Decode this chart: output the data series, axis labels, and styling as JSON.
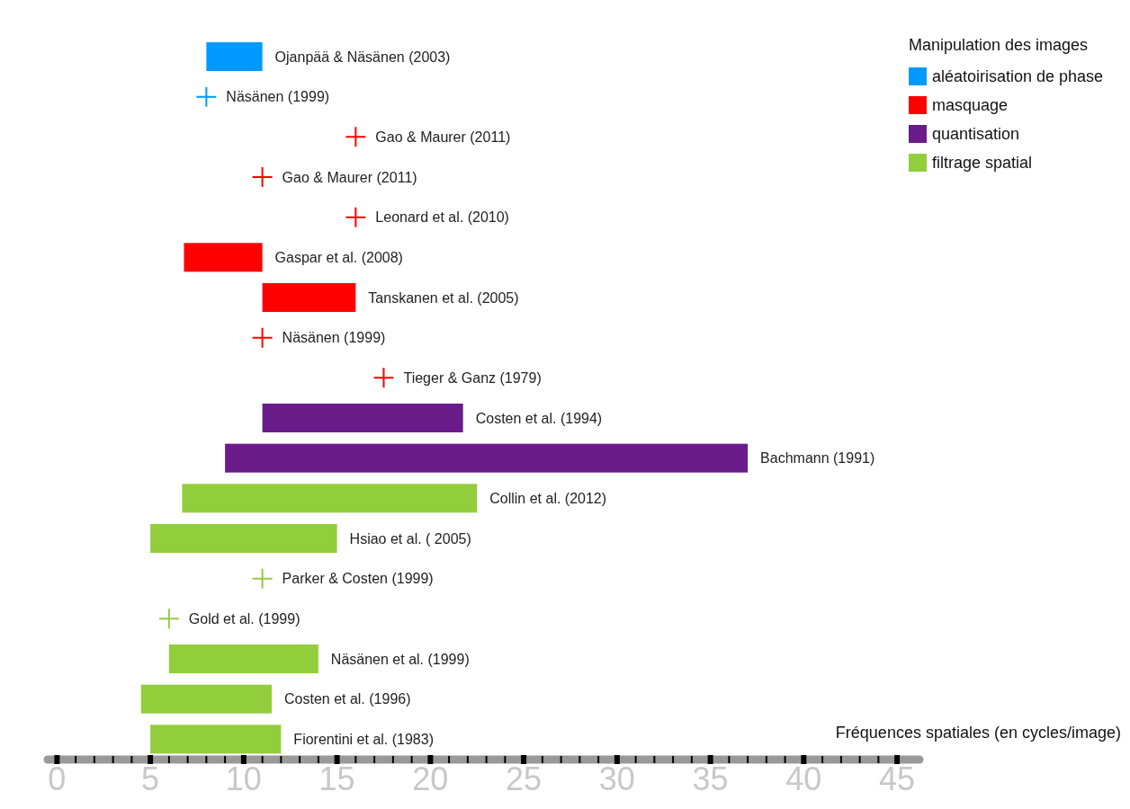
{
  "chart_data": {
    "type": "bar",
    "orientation": "horizontal",
    "categories": [
      "Ojanpää & Näsänen (2003)",
      "Näsänen (1999)",
      "Gao & Maurer (2011)",
      "Gao & Maurer (2011)",
      "Leonard et al. (2010)",
      "Gaspar et al. (2008)",
      "Tanskanen et al. (2005)",
      "Näsänen (1999)",
      "Tieger & Ganz (1979)",
      "Costen et al. (1994)",
      "Bachmann (1991)",
      "Collin et al. (2012)",
      "Hsiao et al. ( 2005)",
      "Parker & Costen (1999)",
      "Gold et al. (1999)",
      "Näsänen et al. (1999)",
      "Costen et al. (1996)",
      "Fiorentini et al. (1983)"
    ],
    "series": [
      {
        "name": "aléatoirisation de phase",
        "color": "#0099ff",
        "values": [
          3,
          null,
          null,
          null,
          null,
          null,
          null,
          null,
          null,
          null,
          null,
          null,
          null,
          null,
          null,
          null,
          null,
          null
        ],
        "base": [
          8,
          null,
          null,
          null,
          null,
          null,
          null,
          null,
          null,
          null,
          null,
          null,
          null,
          null,
          null,
          null,
          null,
          null
        ]
      },
      {
        "type": "scatter",
        "marker": "cross",
        "color": "#0099ff",
        "values": [
          null,
          8,
          null,
          null,
          null,
          null,
          null,
          null,
          null,
          null,
          null,
          null,
          null,
          null,
          null,
          null,
          null,
          null
        ]
      },
      {
        "name": "masquage",
        "color": "#ff0000",
        "values": [
          null,
          null,
          null,
          null,
          null,
          4.2,
          5,
          null,
          null,
          null,
          null,
          null,
          null,
          null,
          null,
          null,
          null,
          null
        ],
        "base": [
          null,
          null,
          null,
          null,
          null,
          6.8,
          11,
          null,
          null,
          null,
          null,
          null,
          null,
          null,
          null,
          null,
          null,
          null
        ]
      },
      {
        "type": "scatter",
        "marker": "cross",
        "color": "#ff0000",
        "values": [
          null,
          null,
          16,
          11,
          16,
          null,
          null,
          11,
          17.5,
          null,
          null,
          null,
          null,
          null,
          null,
          null,
          null,
          null
        ]
      },
      {
        "name": "quantisation",
        "color": "#6a1b8a",
        "values": [
          null,
          null,
          null,
          null,
          null,
          null,
          null,
          null,
          null,
          10.75,
          28,
          null,
          null,
          null,
          null,
          null,
          null,
          null
        ],
        "base": [
          null,
          null,
          null,
          null,
          null,
          null,
          null,
          null,
          null,
          11,
          9,
          null,
          null,
          null,
          null,
          null,
          null,
          null
        ]
      },
      {
        "name": "filtrage spatial",
        "color": "#92cd3c",
        "values": [
          null,
          null,
          null,
          null,
          null,
          null,
          null,
          null,
          null,
          null,
          null,
          15.8,
          10,
          null,
          null,
          8,
          7,
          7
        ],
        "base": [
          null,
          null,
          null,
          null,
          null,
          null,
          null,
          null,
          null,
          null,
          null,
          6.7,
          5,
          null,
          null,
          6,
          4.5,
          5
        ]
      },
      {
        "type": "scatter",
        "marker": "cross",
        "color": "#92cd3c",
        "values": [
          null,
          null,
          null,
          null,
          null,
          null,
          null,
          null,
          null,
          null,
          null,
          null,
          null,
          11,
          6,
          null,
          null,
          null
        ]
      }
    ],
    "xlim": [
      -0.5,
      46.2
    ],
    "xticks": [
      0,
      {
        "value": 1,
        "label": null
      },
      {
        "value": 2,
        "label": null
      },
      {
        "value": 3,
        "label": null
      },
      {
        "value": 4,
        "label": null
      },
      5,
      {
        "value": 6,
        "label": null
      },
      {
        "value": 7,
        "label": null
      },
      {
        "value": 8,
        "label": null
      },
      {
        "value": 9,
        "label": null
      },
      10,
      {
        "value": 11,
        "label": null
      },
      {
        "value": 12,
        "label": null
      },
      {
        "value": 13,
        "label": null
      },
      {
        "value": 14,
        "label": null
      },
      15,
      {
        "value": 16,
        "label": null
      },
      {
        "value": 17,
        "label": null
      },
      {
        "value": 18,
        "label": null
      },
      {
        "value": 19,
        "label": null
      },
      20,
      {
        "value": 21,
        "label": null
      },
      {
        "value": 22,
        "label": null
      },
      {
        "value": 23,
        "label": null
      },
      {
        "value": 24,
        "label": null
      },
      25,
      {
        "value": 26,
        "label": null
      },
      {
        "value": 27,
        "label": null
      },
      {
        "value": 28,
        "label": null
      },
      {
        "value": 29,
        "label": null
      },
      30,
      {
        "value": 31,
        "label": null
      },
      {
        "value": 32,
        "label": null
      },
      {
        "value": 33,
        "label": null
      },
      {
        "value": 34,
        "label": null
      },
      35,
      {
        "value": 36,
        "label": null
      },
      {
        "value": 37,
        "label": null
      },
      {
        "value": 38,
        "label": null
      },
      {
        "value": 39,
        "label": null
      },
      40,
      {
        "value": 41,
        "label": null
      },
      {
        "value": 42,
        "label": null
      },
      {
        "value": 43,
        "label": null
      },
      {
        "value": 44,
        "label": null
      },
      45
    ],
    "xlabel": "Fréquences spatiales (en cycles/image)",
    "legend_title": "Manipulation des images",
    "legend": "top right"
  }
}
